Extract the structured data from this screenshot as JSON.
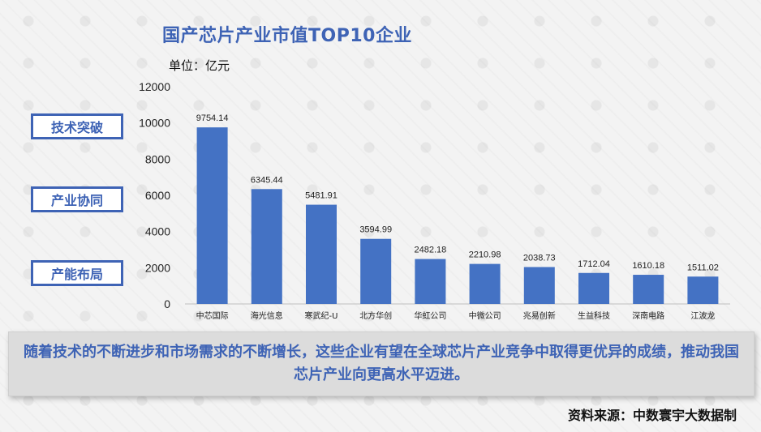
{
  "header": {
    "title": "国产芯片产业市值TOP10企业",
    "unit": "单位：亿元"
  },
  "side_labels": [
    "技术突破",
    "产业协同",
    "产能布局"
  ],
  "conclusion": "随着技术的不断进步和市场需求的不断增长，这些企业有望在全球芯片产业竞争中取得更优异的成绩，推动我国芯片产业向更高水平迈进。",
  "source": "资料来源：中数寰宇大数据制",
  "colors": {
    "bar": "#4472c4",
    "accent": "#3e63b5"
  },
  "chart_data": {
    "type": "bar",
    "title": "国产芯片产业市值TOP10企业",
    "ylabel": "单位：亿元",
    "xlabel": "",
    "ylim": [
      0,
      12000
    ],
    "yticks": [
      0,
      2000,
      4000,
      6000,
      8000,
      10000,
      12000
    ],
    "grid": false,
    "categories": [
      "中芯国际",
      "海光信息",
      "寒武纪-U",
      "北方华创",
      "华虹公司",
      "中微公司",
      "兆易创新",
      "生益科技",
      "深南电路",
      "江波龙"
    ],
    "values": [
      9754.14,
      6345.44,
      5481.91,
      3594.99,
      2482.18,
      2210.98,
      2038.73,
      1712.04,
      1610.18,
      1511.02
    ],
    "value_labels": [
      "9754.14",
      "6345.44",
      "5481.91",
      "3594.99",
      "2482.18",
      "2210.98",
      "2038.73",
      "1712.04",
      "1610.18",
      "1511.02"
    ]
  }
}
